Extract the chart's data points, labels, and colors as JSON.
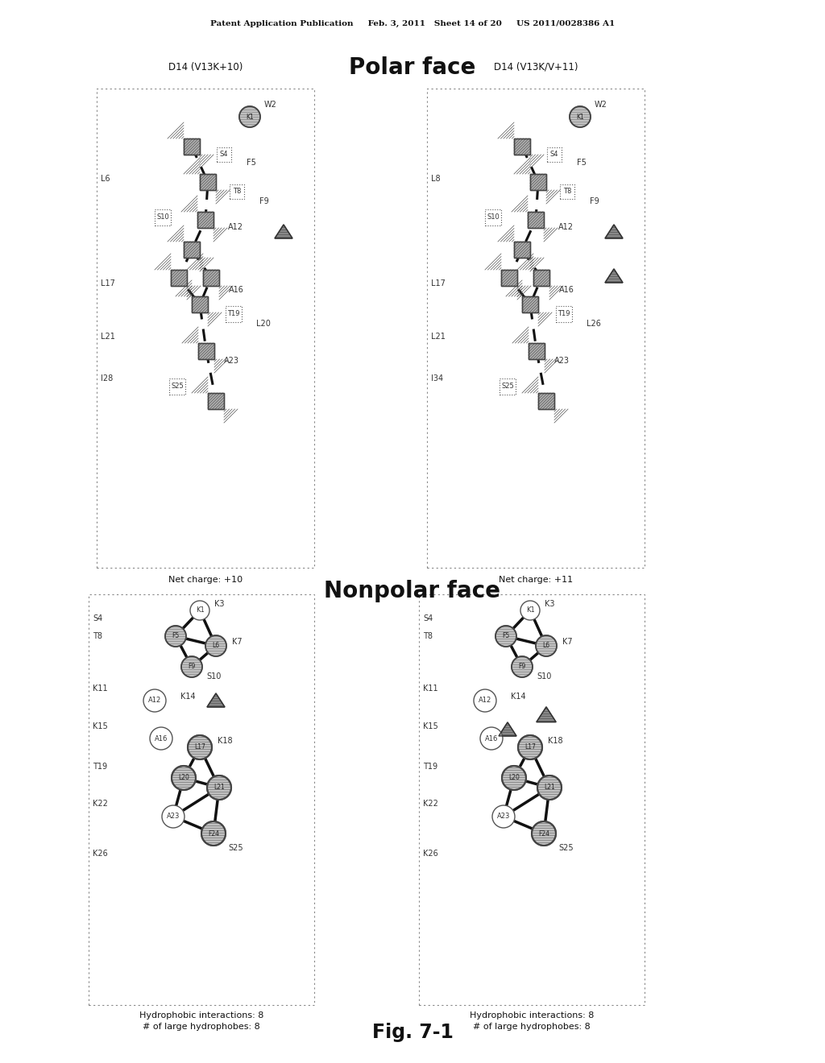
{
  "title_polar": "Polar face",
  "title_nonpolar": "Nonpolar face",
  "subtitle_left_polar": "D14 (V13K+10)",
  "subtitle_right_polar": "D14 (V13K/V+11)",
  "patent_header": "Patent Application Publication     Feb. 3, 2011   Sheet 14 of 20     US 2011/0028386 A1",
  "fig_label": "Fig. 7-1",
  "net_charge_left": "Net charge: +10",
  "net_charge_right": "Net charge: +11",
  "hydrophobic_left_line1": "Hydrophobic interactions: 8",
  "hydrophobic_left_line2": "# of large hydrophobes: 8",
  "hydrophobic_right_line1": "Hydrophobic interactions: 8",
  "hydrophobic_right_line2": "# of large hydrophobes: 8",
  "bg_color": "#ffffff",
  "text_color": "#333333",
  "dark_text": "#111111"
}
